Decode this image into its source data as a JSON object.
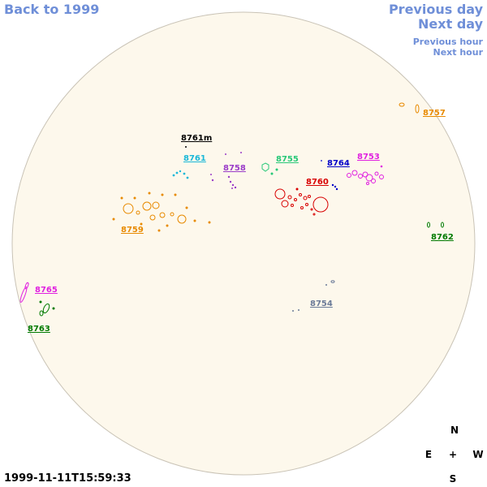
{
  "nav": {
    "back": "Back to 1999",
    "prev_day": "Previous day",
    "next_day": "Next day",
    "prev_hour": "Previous hour",
    "next_hour": "Next hour"
  },
  "timestamp": "1999-11-11T15:59:33",
  "compass": {
    "n": "N",
    "s": "S",
    "e": "E",
    "w": "W",
    "center": "+"
  },
  "colors": {
    "disk_fill": "#fdf8ec",
    "disk_stroke": "#c9c3b6",
    "nav_link": "#6f8fd8"
  },
  "regions": [
    {
      "id": "8757",
      "label": "8757",
      "color": "#e88a00"
    },
    {
      "id": "8761m",
      "label": "8761m",
      "color": "#000000"
    },
    {
      "id": "8761",
      "label": "8761",
      "color": "#1ab8d8"
    },
    {
      "id": "8758",
      "label": "8758",
      "color": "#9a3cc8"
    },
    {
      "id": "8755",
      "label": "8755",
      "color": "#28c878"
    },
    {
      "id": "8764",
      "label": "8764",
      "color": "#0000c8"
    },
    {
      "id": "8753",
      "label": "8753",
      "color": "#e020e0"
    },
    {
      "id": "8760",
      "label": "8760",
      "color": "#d80000"
    },
    {
      "id": "8759",
      "label": "8759",
      "color": "#e88a00"
    },
    {
      "id": "8762",
      "label": "8762",
      "color": "#007a00"
    },
    {
      "id": "8765",
      "label": "8765",
      "color": "#e020e0"
    },
    {
      "id": "8763",
      "label": "8763",
      "color": "#007a00"
    },
    {
      "id": "8754",
      "label": "8754",
      "color": "#6a7a98"
    }
  ]
}
